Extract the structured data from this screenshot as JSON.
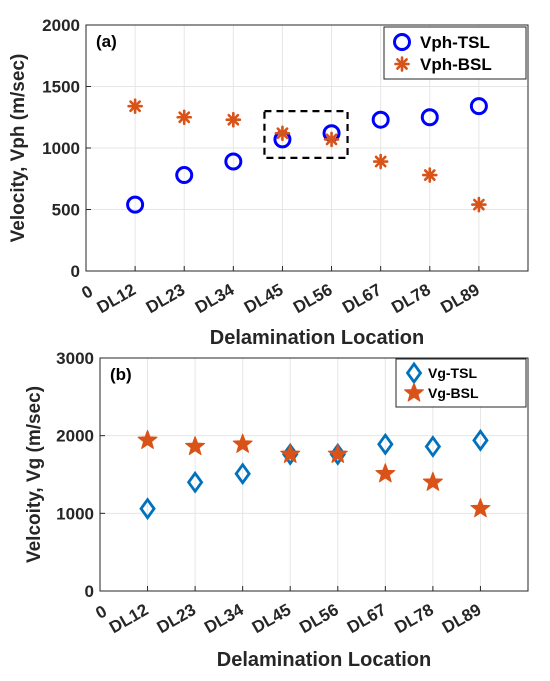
{
  "chart_data": [
    {
      "type": "scatter",
      "panel_label": "(a)",
      "categories": [
        "DL12",
        "DL23",
        "DL34",
        "DL45",
        "DL56",
        "DL67",
        "DL78",
        "DL89"
      ],
      "x_origin_label": "0",
      "xlabel": "Delamination Location",
      "ylabel": "Velocity, Vph (m/sec)",
      "ylim": [
        0,
        2000
      ],
      "yticks": [
        0,
        500,
        1000,
        1500,
        2000
      ],
      "grid": true,
      "legend_position": "top-right",
      "highlight_box": {
        "from_category": "DL45",
        "to_category": "DL56",
        "ylim": [
          920,
          1300
        ],
        "style": "dashed"
      },
      "series": [
        {
          "name": "Vph-TSL",
          "marker": "circle",
          "color": "#0000ff",
          "values": [
            540,
            780,
            890,
            1070,
            1120,
            1230,
            1250,
            1340
          ]
        },
        {
          "name": "Vph-BSL",
          "marker": "asterisk",
          "color": "#d95319",
          "values": [
            1340,
            1250,
            1230,
            1120,
            1070,
            890,
            780,
            540
          ]
        }
      ]
    },
    {
      "type": "scatter",
      "panel_label": "(b)",
      "categories": [
        "DL12",
        "DL23",
        "DL34",
        "DL45",
        "DL56",
        "DL67",
        "DL78",
        "DL89"
      ],
      "x_origin_label": "0",
      "xlabel": "Delamination Location",
      "ylabel": "Velcoity, Vg (m/sec)",
      "ylim": [
        0,
        3000
      ],
      "yticks": [
        0,
        1000,
        2000,
        3000
      ],
      "grid": true,
      "legend_position": "top-right",
      "series": [
        {
          "name": "Vg-TSL",
          "marker": "diamond",
          "color": "#0072bd",
          "values": [
            1060,
            1400,
            1510,
            1760,
            1760,
            1890,
            1860,
            1940
          ]
        },
        {
          "name": "Vg-BSL",
          "marker": "star",
          "color": "#d95319",
          "values": [
            1940,
            1860,
            1890,
            1760,
            1760,
            1510,
            1400,
            1060
          ]
        }
      ]
    }
  ]
}
